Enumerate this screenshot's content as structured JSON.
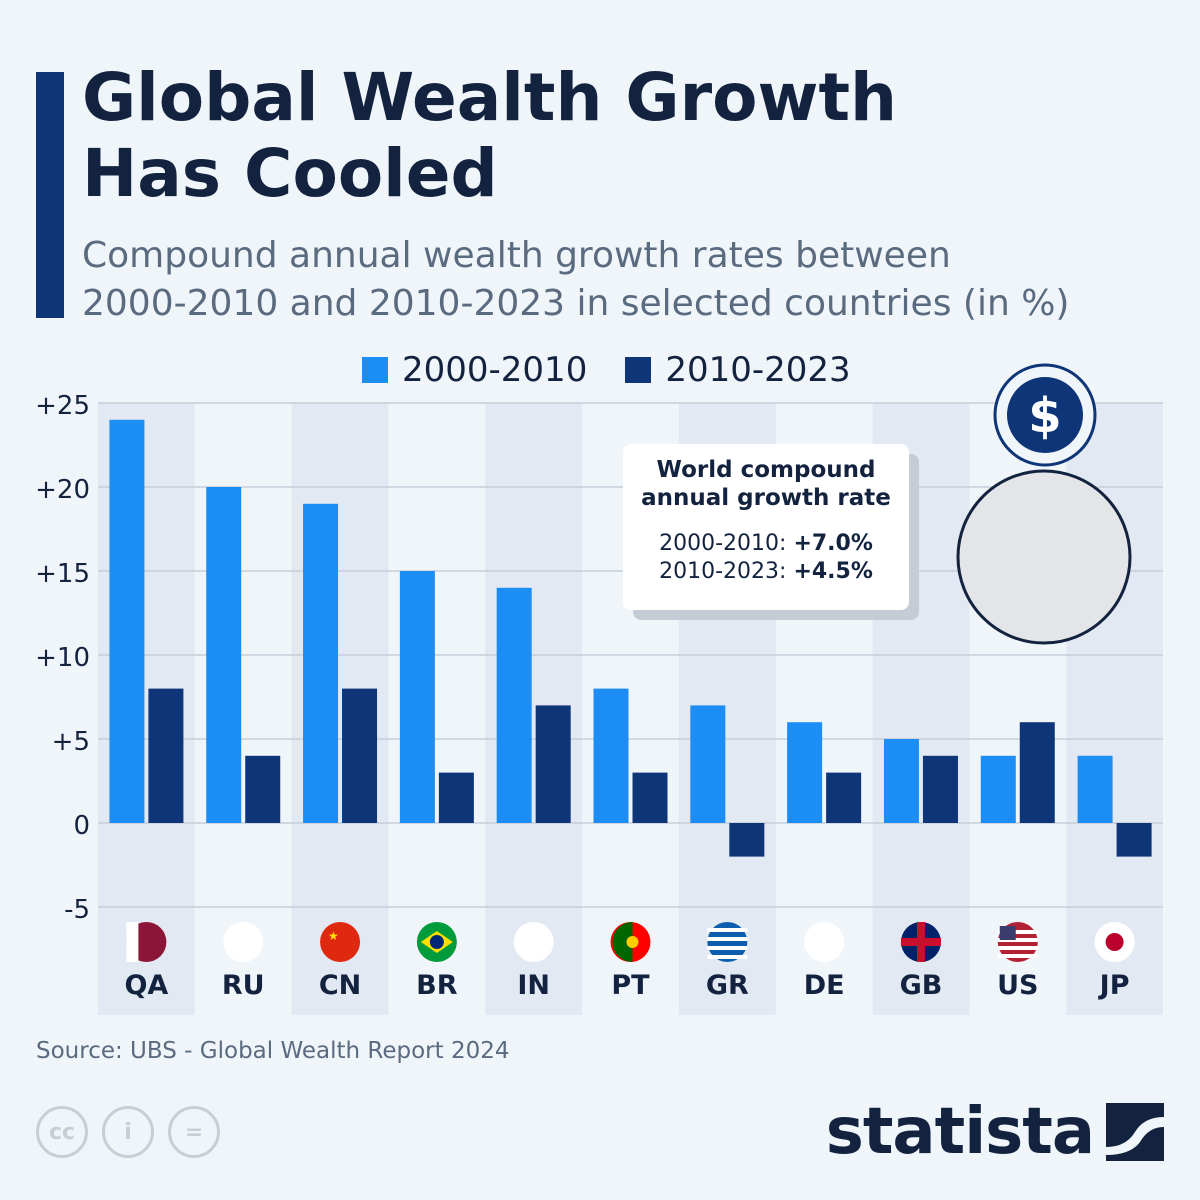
{
  "title": "Global Wealth Growth Has Cooled",
  "subtitle": "Compound annual wealth growth rates between 2000-2010 and 2010-2023 in selected countries (in %)",
  "source": "Source: UBS - Global Wealth Report 2024",
  "brand": "statista",
  "info_box": {
    "heading_line1": "World compound",
    "heading_line2": "annual growth rate",
    "row1_label": "2000-2010:",
    "row1_value": "+7.0%",
    "row2_label": "2010-2023:",
    "row2_value": "+4.5%"
  },
  "colors": {
    "series1": "#1c8df5",
    "series2": "#0d3577",
    "text": "#13233f"
  },
  "chart_data": {
    "type": "bar",
    "categories": [
      "QA",
      "RU",
      "CN",
      "BR",
      "IN",
      "PT",
      "GR",
      "DE",
      "GB",
      "US",
      "JP"
    ],
    "series": [
      {
        "name": "2000-2010",
        "values": [
          24,
          20,
          19,
          15,
          14,
          8,
          7,
          6,
          5,
          4,
          4
        ]
      },
      {
        "name": "2010-2023",
        "values": [
          8,
          4,
          8,
          3,
          7,
          3,
          -2,
          3,
          4,
          6,
          -2
        ]
      }
    ],
    "ylim": [
      -5,
      25
    ],
    "yticks": [
      25,
      20,
      15,
      10,
      5,
      0,
      -5
    ],
    "ytick_labels": [
      "+25",
      "+20",
      "+15",
      "+10",
      "+5",
      "0",
      "-5"
    ],
    "grid": true,
    "legend": "top"
  }
}
